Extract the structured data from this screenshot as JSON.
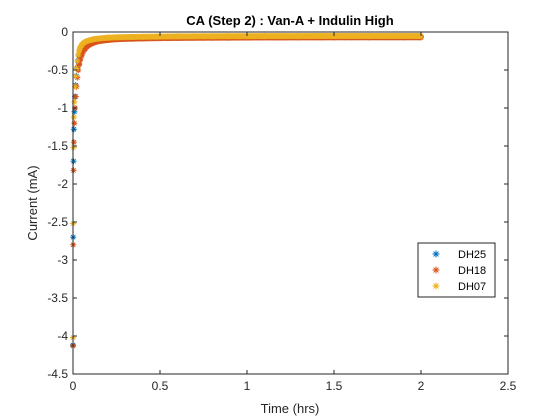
{
  "chart_data": {
    "type": "scatter",
    "title": "CA (Step 2) : Van-A + Indulin High",
    "xlabel": "Time (hrs)",
    "ylabel": "Current (mA)",
    "xlim": [
      0,
      2.5
    ],
    "ylim": [
      -4.5,
      0
    ],
    "xticks": [
      0,
      0.5,
      1,
      1.5,
      2,
      2.5
    ],
    "xtick_labels": [
      "0",
      "0.5",
      "1",
      "1.5",
      "2",
      "2.5"
    ],
    "yticks": [
      0,
      -0.5,
      -1,
      -1.5,
      -2,
      -2.5,
      -3,
      -3.5,
      -4,
      -4.5
    ],
    "ytick_labels": [
      "0",
      "-0.5",
      "-1",
      "-1.5",
      "-2",
      "-2.5",
      "-3",
      "-3.5",
      "-4",
      "-4.5"
    ],
    "grid": false,
    "marker": "asterisk",
    "legend_position": "right",
    "series": [
      {
        "name": "DH25",
        "color": "#0072BD",
        "x": [
          0,
          0.001,
          0.003,
          0.005,
          0.008,
          0.012,
          0.016,
          0.02,
          0.025,
          0.03,
          0.035,
          0.04,
          0.05,
          0.06,
          0.07,
          0.08,
          0.1,
          0.12,
          0.15,
          0.2,
          0.25,
          0.3,
          0.4,
          0.5,
          0.6,
          0.7,
          0.8,
          0.9,
          1.0,
          1.1,
          1.2,
          1.3,
          1.4,
          1.5,
          1.6,
          1.7,
          1.8,
          1.9,
          2.0
        ],
        "y": [
          -4.12,
          -2.7,
          -1.7,
          -1.28,
          -1.05,
          -0.85,
          -0.7,
          -0.58,
          -0.47,
          -0.38,
          -0.32,
          -0.27,
          -0.21,
          -0.18,
          -0.16,
          -0.14,
          -0.12,
          -0.11,
          -0.1,
          -0.09,
          -0.085,
          -0.08,
          -0.075,
          -0.072,
          -0.07,
          -0.068,
          -0.067,
          -0.066,
          -0.065,
          -0.064,
          -0.064,
          -0.063,
          -0.063,
          -0.063,
          -0.062,
          -0.062,
          -0.062,
          -0.062,
          -0.062
        ]
      },
      {
        "name": "DH18",
        "color": "#D95319",
        "x": [
          0,
          0.001,
          0.003,
          0.005,
          0.008,
          0.012,
          0.016,
          0.02,
          0.025,
          0.03,
          0.035,
          0.04,
          0.05,
          0.06,
          0.07,
          0.08,
          0.1,
          0.12,
          0.15,
          0.2,
          0.25,
          0.3,
          0.4,
          0.5,
          0.6,
          0.7,
          0.8,
          0.9,
          1.0,
          1.1,
          1.2,
          1.3,
          1.4,
          1.5,
          1.6,
          1.7,
          1.8,
          1.9,
          2.0
        ],
        "y": [
          -4.13,
          -2.8,
          -1.82,
          -1.45,
          -1.2,
          -1.0,
          -0.85,
          -0.72,
          -0.6,
          -0.5,
          -0.43,
          -0.37,
          -0.3,
          -0.25,
          -0.22,
          -0.19,
          -0.16,
          -0.14,
          -0.12,
          -0.105,
          -0.095,
          -0.09,
          -0.085,
          -0.08,
          -0.078,
          -0.076,
          -0.075,
          -0.074,
          -0.073,
          -0.072,
          -0.072,
          -0.071,
          -0.071,
          -0.07,
          -0.07,
          -0.07,
          -0.07,
          -0.07,
          -0.07
        ]
      },
      {
        "name": "DH07",
        "color": "#EDB120",
        "x": [
          0,
          0.001,
          0.003,
          0.005,
          0.008,
          0.012,
          0.016,
          0.02,
          0.025,
          0.03,
          0.035,
          0.04,
          0.05,
          0.06,
          0.07,
          0.08,
          0.1,
          0.12,
          0.15,
          0.2,
          0.25,
          0.3,
          0.4,
          0.5,
          0.6,
          0.7,
          0.8,
          0.9,
          1.0,
          1.1,
          1.2,
          1.3,
          1.4,
          1.5,
          1.6,
          1.7,
          1.8,
          1.9,
          2.0
        ],
        "y": [
          -4.02,
          -2.52,
          -1.52,
          -1.12,
          -0.92,
          -0.72,
          -0.58,
          -0.48,
          -0.38,
          -0.3,
          -0.25,
          -0.21,
          -0.17,
          -0.145,
          -0.13,
          -0.12,
          -0.105,
          -0.095,
          -0.085,
          -0.075,
          -0.07,
          -0.067,
          -0.063,
          -0.06,
          -0.058,
          -0.057,
          -0.056,
          -0.055,
          -0.055,
          -0.054,
          -0.054,
          -0.054,
          -0.053,
          -0.053,
          -0.053,
          -0.053,
          -0.053,
          -0.053,
          -0.053
        ]
      }
    ]
  }
}
